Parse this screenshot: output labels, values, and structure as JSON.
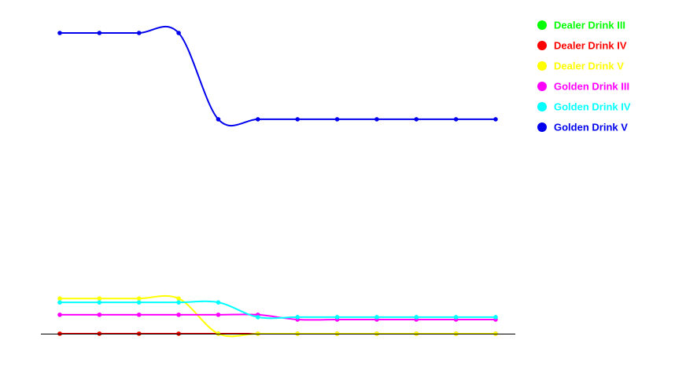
{
  "chart_data": {
    "type": "line",
    "title": "",
    "xlabel": "",
    "ylabel": "",
    "x": [
      1,
      2,
      3,
      4,
      5,
      6,
      7,
      8,
      9,
      10,
      11,
      12
    ],
    "ylim": [
      0,
      100
    ],
    "grid": false,
    "legend_position": "right",
    "smooth": true,
    "series": [
      {
        "name": "Dealer Drink III",
        "color": "#00ff00",
        "values": [
          0,
          0,
          0,
          0,
          0,
          0,
          0,
          0,
          0,
          0,
          0,
          0
        ]
      },
      {
        "name": "Dealer Drink IV",
        "color": "#ff0000",
        "values": [
          0,
          0,
          0,
          0,
          0,
          0,
          0,
          0,
          0,
          0,
          0,
          0
        ]
      },
      {
        "name": "Dealer Drink V",
        "color": "#ffff00",
        "values": [
          11.7,
          11.7,
          11.7,
          11.7,
          0,
          0,
          0,
          0,
          0,
          0,
          0,
          0
        ]
      },
      {
        "name": "Golden Drink III",
        "color": "#ff00ff",
        "values": [
          6.3,
          6.3,
          6.3,
          6.3,
          6.3,
          6.3,
          4.7,
          4.7,
          4.7,
          4.7,
          4.7,
          4.7
        ]
      },
      {
        "name": "Golden Drink IV",
        "color": "#00ffff",
        "values": [
          10.4,
          10.4,
          10.4,
          10.4,
          10.4,
          5.5,
          5.5,
          5.5,
          5.5,
          5.5,
          5.5,
          5.5
        ]
      },
      {
        "name": "Golden Drink V",
        "color": "#0000ee",
        "values": [
          100,
          100,
          100,
          100,
          71.3,
          71.3,
          71.3,
          71.3,
          71.3,
          71.3,
          71.3,
          71.3
        ]
      }
    ]
  }
}
